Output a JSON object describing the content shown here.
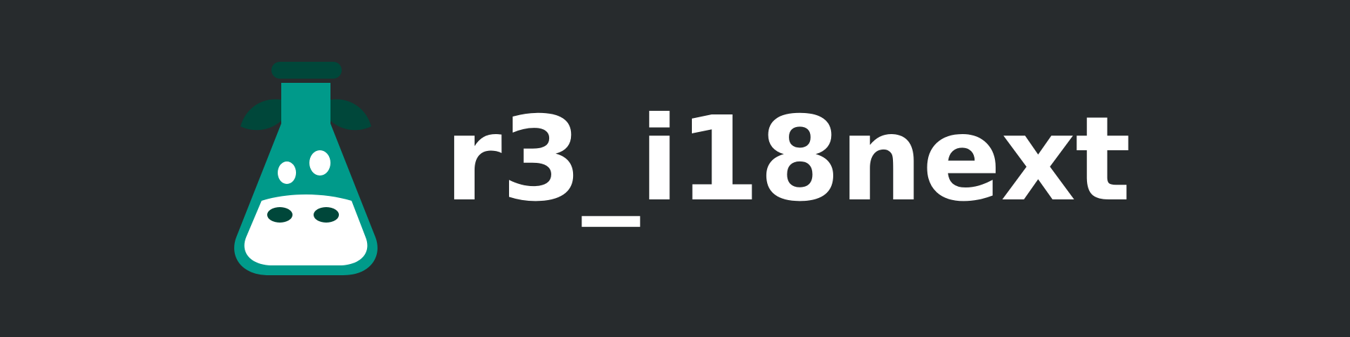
{
  "brand": {
    "name": "r3_i18next",
    "logo_icon": "flask-cow-icon",
    "colors": {
      "background": "#272b2d",
      "flask": "#009a8a",
      "dark_green": "#00473a",
      "text": "#ffffff"
    }
  }
}
